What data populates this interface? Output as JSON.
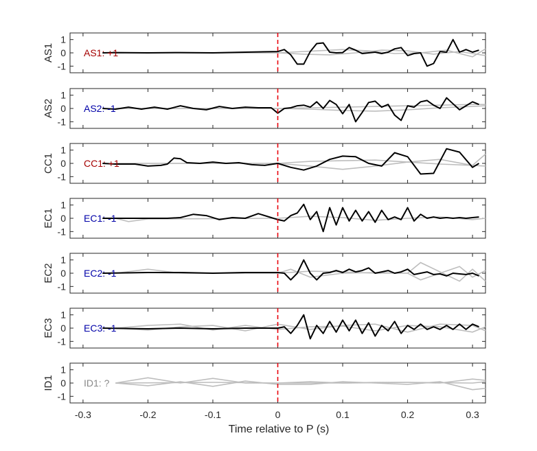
{
  "chart_data": {
    "type": "line",
    "xlabel": "Time relative to P (s)",
    "xlim": [
      -0.32,
      0.32
    ],
    "x_ticks": [
      -0.3,
      -0.2,
      -0.1,
      0,
      0.1,
      0.2,
      0.3
    ],
    "x_tick_labels": [
      "-0.3",
      "-0.2",
      "-0.1",
      "0",
      "0.1",
      "0.2",
      "0.3"
    ],
    "ylim": [
      -1.5,
      1.5
    ],
    "y_ticks": [
      -1,
      0,
      1
    ],
    "y_tick_labels": [
      "-1",
      "0",
      "1"
    ],
    "marker_line": {
      "x": 0,
      "color": "#e8000b",
      "style": "dashed"
    },
    "colors": {
      "main_trace": "#000000",
      "background_traces": "#bdbdbd",
      "positive_label": "#a50000",
      "negative_label": "#0000a8",
      "unknown_label": "#888888"
    },
    "panels": [
      {
        "station": "AS1",
        "label": "AS1: +1",
        "polarity": "positive",
        "x": [
          -0.27,
          -0.25,
          -0.2,
          -0.15,
          -0.1,
          -0.05,
          0,
          0.01,
          0.02,
          0.03,
          0.04,
          0.05,
          0.06,
          0.07,
          0.08,
          0.09,
          0.1,
          0.11,
          0.12,
          0.13,
          0.14,
          0.15,
          0.16,
          0.17,
          0.18,
          0.19,
          0.2,
          0.21,
          0.22,
          0.23,
          0.24,
          0.25,
          0.26,
          0.27,
          0.28,
          0.29,
          0.3,
          0.31
        ],
        "y": [
          0,
          0.02,
          0,
          0.02,
          0,
          0.05,
          0.1,
          0.25,
          -0.15,
          -0.85,
          -0.85,
          0.1,
          0.7,
          0.75,
          0.05,
          0,
          0.02,
          0.4,
          0.2,
          -0.05,
          0,
          0.05,
          -0.05,
          0.05,
          0.3,
          0.4,
          -0.2,
          -0.05,
          0,
          -1,
          -0.8,
          0.1,
          0.05,
          1.0,
          0.05,
          0.25,
          0.05,
          0.2
        ],
        "background": [
          {
            "x": [
              -0.25,
              0,
              0.02,
              0.06,
              0.1,
              0.14,
              0.18,
              0.22,
              0.26,
              0.3,
              0.32
            ],
            "y": [
              0,
              0,
              0.05,
              0.15,
              0.25,
              0.15,
              -0.05,
              0,
              0.2,
              -0.3,
              0.3
            ]
          },
          {
            "x": [
              -0.25,
              0,
              0.04,
              0.08,
              0.12,
              0.16,
              0.2,
              0.24,
              0.28,
              0.32
            ],
            "y": [
              0,
              0,
              -0.1,
              -0.15,
              0,
              0.2,
              0.15,
              -0.1,
              0.1,
              -0.2
            ]
          }
        ]
      },
      {
        "station": "AS2",
        "label": "AS2: -1",
        "polarity": "negative",
        "x": [
          -0.27,
          -0.25,
          -0.23,
          -0.21,
          -0.19,
          -0.17,
          -0.15,
          -0.13,
          -0.11,
          -0.09,
          -0.07,
          -0.05,
          -0.03,
          -0.01,
          0,
          0.01,
          0.02,
          0.03,
          0.04,
          0.05,
          0.06,
          0.07,
          0.08,
          0.09,
          0.1,
          0.11,
          0.12,
          0.13,
          0.14,
          0.15,
          0.16,
          0.17,
          0.18,
          0.19,
          0.2,
          0.21,
          0.22,
          0.23,
          0.24,
          0.25,
          0.26,
          0.27,
          0.28,
          0.29,
          0.3,
          0.31
        ],
        "y": [
          0,
          -0.05,
          0.1,
          -0.05,
          0.1,
          -0.05,
          0.2,
          0,
          -0.1,
          0.15,
          0,
          0.1,
          0.05,
          0.05,
          -0.35,
          0,
          0.05,
          0.2,
          0.25,
          0.1,
          0.5,
          0,
          0.6,
          0.3,
          -0.4,
          0.3,
          -1.0,
          -0.3,
          0.45,
          0.55,
          0.1,
          0.3,
          -0.5,
          -0.9,
          0.2,
          0.1,
          0.5,
          0.6,
          0.25,
          0,
          0.8,
          0.35,
          -0.1,
          0.2,
          0.5,
          0.3
        ],
        "background": [
          {
            "x": [
              -0.25,
              0,
              0.05,
              0.1,
              0.15,
              0.2,
              0.25,
              0.3,
              0.32
            ],
            "y": [
              0,
              0,
              0.05,
              0.1,
              0.15,
              0.2,
              0.25,
              0.3,
              0.3
            ]
          },
          {
            "x": [
              -0.25,
              0,
              0.05,
              0.1,
              0.15,
              0.2,
              0.25,
              0.3,
              0.32
            ],
            "y": [
              0,
              0,
              -0.05,
              -0.15,
              -0.2,
              -0.1,
              0.05,
              0.15,
              0.2
            ]
          }
        ]
      },
      {
        "station": "CC1",
        "label": "CC1: +1",
        "polarity": "positive",
        "x": [
          -0.27,
          -0.25,
          -0.22,
          -0.2,
          -0.18,
          -0.17,
          -0.16,
          -0.15,
          -0.14,
          -0.12,
          -0.1,
          -0.08,
          -0.06,
          -0.04,
          -0.02,
          0,
          0.02,
          0.04,
          0.06,
          0.08,
          0.1,
          0.12,
          0.14,
          0.16,
          0.18,
          0.2,
          0.22,
          0.24,
          0.26,
          0.28,
          0.3,
          0.31
        ],
        "y": [
          0,
          -0.05,
          -0.05,
          -0.2,
          -0.15,
          -0.05,
          0.4,
          0.35,
          0.05,
          0,
          0.1,
          0,
          0.05,
          -0.1,
          -0.15,
          0,
          -0.3,
          -0.5,
          -0.2,
          0.3,
          0.55,
          0.5,
          0,
          -0.2,
          0.8,
          0.5,
          -0.8,
          -0.75,
          1.1,
          0.85,
          -0.3,
          0
        ],
        "background": [
          {
            "x": [
              -0.25,
              -0.1,
              0,
              0.05,
              0.1,
              0.15,
              0.2,
              0.25,
              0.3,
              0.32
            ],
            "y": [
              0,
              0,
              0,
              -0.2,
              -0.45,
              -0.2,
              0.1,
              -0.05,
              -0.15,
              0.7
            ]
          },
          {
            "x": [
              -0.25,
              -0.1,
              0,
              0.05,
              0.1,
              0.15,
              0.2,
              0.25,
              0.3,
              0.32
            ],
            "y": [
              0,
              0,
              0,
              0.15,
              0.2,
              0.25,
              0.1,
              0.3,
              -0.15,
              -0.2
            ]
          }
        ]
      },
      {
        "station": "EC1",
        "label": "EC1: -1",
        "polarity": "negative",
        "x": [
          -0.27,
          -0.22,
          -0.17,
          -0.15,
          -0.13,
          -0.11,
          -0.09,
          -0.07,
          -0.05,
          -0.03,
          -0.01,
          0,
          0.01,
          0.02,
          0.03,
          0.04,
          0.05,
          0.06,
          0.07,
          0.08,
          0.09,
          0.1,
          0.11,
          0.12,
          0.13,
          0.14,
          0.15,
          0.16,
          0.17,
          0.18,
          0.19,
          0.2,
          0.21,
          0.22,
          0.23,
          0.24,
          0.25,
          0.26,
          0.27,
          0.28,
          0.29,
          0.3,
          0.31
        ],
        "y": [
          0,
          0,
          0,
          0.05,
          0.3,
          0.2,
          -0.1,
          0.05,
          0,
          0.35,
          0.05,
          -0.1,
          -0.2,
          0.2,
          0.4,
          1.05,
          -0.1,
          0.5,
          -1.0,
          0.8,
          -0.5,
          0.8,
          -0.2,
          0.6,
          -0.2,
          0.5,
          -0.3,
          0.6,
          -0.1,
          0.1,
          -0.1,
          0.8,
          -0.2,
          0.3,
          0,
          0.1,
          0,
          0.05,
          0,
          0.05,
          0,
          0.05,
          0.1
        ],
        "background": [
          {
            "x": [
              -0.25,
              -0.23,
              -0.2,
              0,
              0.05,
              0.1,
              0.15,
              0.2,
              0.25,
              0.3,
              0.32
            ],
            "y": [
              0,
              -0.25,
              -0.05,
              0,
              0.15,
              0.05,
              -0.15,
              0,
              0.1,
              -0.1,
              0
            ]
          }
        ]
      },
      {
        "station": "EC2",
        "label": "EC2: -1",
        "polarity": "negative",
        "x": [
          -0.27,
          -0.2,
          -0.15,
          -0.1,
          -0.05,
          0,
          0.01,
          0.02,
          0.03,
          0.04,
          0.05,
          0.06,
          0.07,
          0.08,
          0.09,
          0.1,
          0.11,
          0.12,
          0.13,
          0.14,
          0.15,
          0.16,
          0.17,
          0.18,
          0.19,
          0.2,
          0.21,
          0.22,
          0.23,
          0.24,
          0.25,
          0.26,
          0.27,
          0.28,
          0.29,
          0.3,
          0.31
        ],
        "y": [
          0,
          0.05,
          0.05,
          0,
          0.05,
          0.05,
          0,
          -0.5,
          0,
          1.0,
          0,
          -0.5,
          0,
          0.05,
          0.2,
          0.05,
          0.3,
          0.1,
          0.2,
          0.4,
          0,
          0.1,
          0.2,
          0,
          0.1,
          0.3,
          -0.1,
          0,
          0.1,
          -0.1,
          -0.05,
          -0.2,
          0,
          -0.05,
          -0.1,
          0,
          -0.2
        ],
        "background": [
          {
            "x": [
              -0.25,
              -0.2,
              -0.15,
              0,
              0.02,
              0.05,
              0.1,
              0.15,
              0.2,
              0.22,
              0.25,
              0.28,
              0.3,
              0.32
            ],
            "y": [
              0,
              0.3,
              0,
              0,
              0.3,
              -0.3,
              0,
              0.05,
              0,
              0.8,
              0.1,
              -0.6,
              0.3,
              -0.6
            ]
          },
          {
            "x": [
              -0.25,
              -0.2,
              -0.15,
              0,
              0.05,
              0.1,
              0.15,
              0.2,
              0.22,
              0.25,
              0.28,
              0.3,
              0.32
            ],
            "y": [
              0,
              0.05,
              0,
              0,
              0.15,
              0.1,
              0,
              0,
              -0.5,
              0,
              0.5,
              -0.3,
              0.2
            ]
          }
        ]
      },
      {
        "station": "EC3",
        "label": "EC3: -1",
        "polarity": "negative",
        "x": [
          -0.27,
          -0.2,
          -0.15,
          -0.1,
          -0.05,
          0,
          0.01,
          0.02,
          0.03,
          0.04,
          0.05,
          0.06,
          0.07,
          0.08,
          0.09,
          0.1,
          0.11,
          0.12,
          0.13,
          0.14,
          0.15,
          0.16,
          0.17,
          0.18,
          0.19,
          0.2,
          0.21,
          0.22,
          0.23,
          0.24,
          0.25,
          0.26,
          0.27,
          0.28,
          0.29,
          0.3,
          0.31
        ],
        "y": [
          0,
          -0.05,
          0,
          -0.05,
          0,
          0,
          0.1,
          -0.4,
          0.2,
          1.0,
          -0.8,
          0.2,
          -0.4,
          0.5,
          -0.3,
          0.6,
          -0.2,
          0.6,
          -0.4,
          0.4,
          -0.6,
          0.2,
          -0.2,
          0.5,
          -0.4,
          0.2,
          -0.1,
          0.3,
          -0.1,
          0.1,
          -0.1,
          0.2,
          -0.1,
          0.3,
          -0.1,
          0.3,
          0.1
        ],
        "background": [
          {
            "x": [
              -0.25,
              -0.2,
              -0.15,
              -0.1,
              -0.05,
              0,
              0.05,
              0.1,
              0.15,
              0.2,
              0.25,
              0.3,
              0.32
            ],
            "y": [
              0,
              0.2,
              0.3,
              -0.15,
              0.2,
              -0.1,
              0.1,
              0.15,
              -0.2,
              0.2,
              0.1,
              -0.3,
              0.1
            ]
          },
          {
            "x": [
              -0.25,
              -0.2,
              -0.15,
              -0.1,
              -0.05,
              0,
              0.05,
              0.1,
              0.15,
              0.2,
              0.25,
              0.3,
              0.32
            ],
            "y": [
              0,
              -0.15,
              0.1,
              0.2,
              -0.2,
              0.3,
              -0.1,
              0.2,
              0.3,
              -0.3,
              0.3,
              0.2,
              -0.2
            ]
          }
        ]
      },
      {
        "station": "ID1",
        "label": "ID1: ?",
        "polarity": "unknown",
        "x": [],
        "y": [],
        "background": [
          {
            "x": [
              -0.25,
              -0.2,
              -0.15,
              -0.1,
              -0.05,
              0,
              0.05,
              0.1,
              0.15,
              0.2,
              0.25,
              0.3,
              0.32
            ],
            "y": [
              0,
              0.4,
              0,
              0.35,
              0,
              0,
              0.1,
              0,
              0.05,
              0.05,
              0,
              0.3,
              0.2
            ]
          },
          {
            "x": [
              -0.25,
              -0.2,
              -0.15,
              -0.1,
              -0.05,
              0,
              0.05,
              0.1,
              0.15,
              0.2,
              0.25,
              0.3,
              0.32
            ],
            "y": [
              0,
              -0.2,
              0.1,
              -0.25,
              0.15,
              -0.1,
              -0.1,
              0.1,
              0,
              -0.1,
              0.1,
              -0.5,
              -0.4
            ]
          },
          {
            "x": [
              -0.25,
              -0.1,
              0,
              0.1,
              0.2,
              0.3,
              0.32
            ],
            "y": [
              0,
              0.05,
              0,
              0,
              0.05,
              0,
              0.1
            ]
          }
        ]
      }
    ]
  }
}
